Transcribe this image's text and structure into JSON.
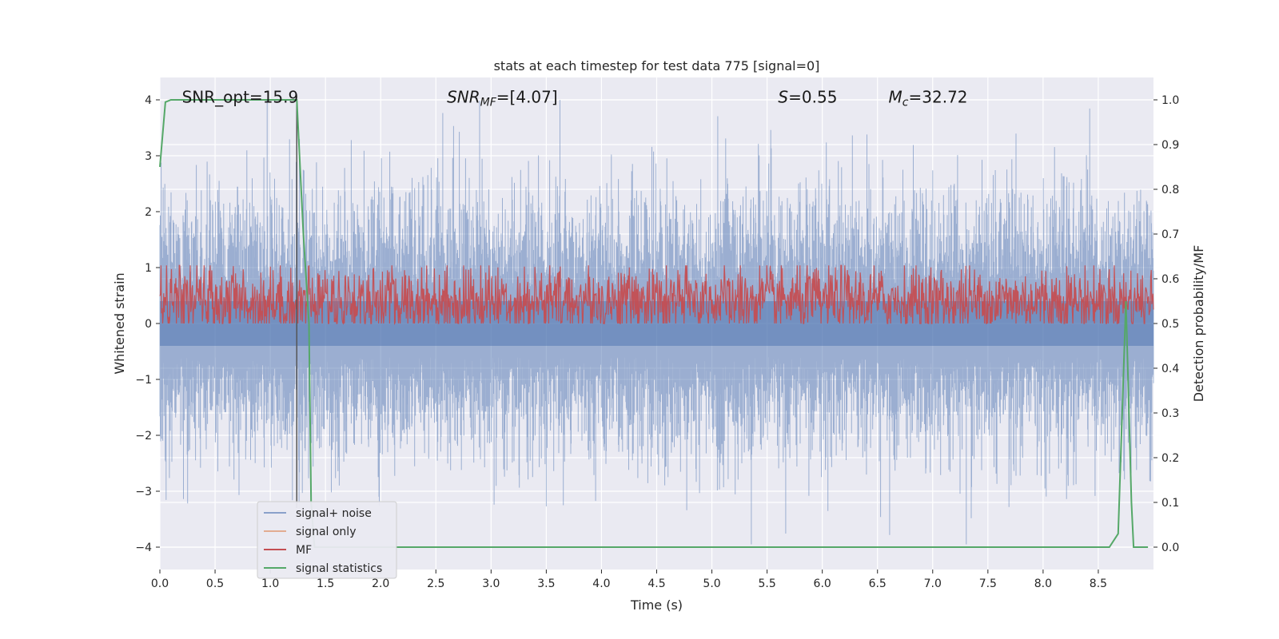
{
  "chart_data": {
    "type": "line",
    "title": "stats at each timestep for test data 775 [signal=0]",
    "xlabel": "Time (s)",
    "ylabel": "Whitened strain",
    "y2label": "Detection probability/MF",
    "xlim": [
      0,
      9.0
    ],
    "ylim": [
      -4.4,
      4.4
    ],
    "y2lim": [
      -0.05,
      1.05
    ],
    "grid": true,
    "legend_position": "lower-left",
    "x_ticks": [
      "0.0",
      "0.5",
      "1.0",
      "1.5",
      "2.0",
      "2.5",
      "3.0",
      "3.5",
      "4.0",
      "4.5",
      "5.0",
      "5.5",
      "6.0",
      "6.5",
      "7.0",
      "7.5",
      "8.0",
      "8.5"
    ],
    "x_tick_values": [
      0,
      0.5,
      1,
      1.5,
      2,
      2.5,
      3,
      3.5,
      4,
      4.5,
      5,
      5.5,
      6,
      6.5,
      7,
      7.5,
      8,
      8.5
    ],
    "y_ticks": [
      "−4",
      "−3",
      "−2",
      "−1",
      "0",
      "1",
      "2",
      "3",
      "4"
    ],
    "y_tick_values": [
      -4,
      -3,
      -2,
      -1,
      0,
      1,
      2,
      3,
      4
    ],
    "y2_ticks": [
      "0.0",
      "0.1",
      "0.2",
      "0.3",
      "0.4",
      "0.5",
      "0.6",
      "0.7",
      "0.8",
      "0.9",
      "1.0"
    ],
    "y2_tick_values": [
      0,
      0.1,
      0.2,
      0.3,
      0.4,
      0.5,
      0.6,
      0.7,
      0.8,
      0.9,
      1.0
    ],
    "annotations": [
      {
        "text": "SNR_opt=15.9",
        "x": 0.2,
        "y": 4.05
      },
      {
        "text": "SNR_MF=[4.07]",
        "x": 2.6,
        "y": 4.05
      },
      {
        "text": "S=0.55",
        "x": 5.6,
        "y": 4.05
      },
      {
        "text": "M_c=32.72",
        "x": 6.6,
        "y": 4.05
      }
    ],
    "marker_line_x": 1.24,
    "series": [
      {
        "name": "signal+ noise",
        "color": "#4c72b0",
        "axis": "left",
        "noise_amplitude": 1.0,
        "x_range": [
          0,
          9.0
        ],
        "note_values": "whitened strain noise, roughly within -3.5 to 4"
      },
      {
        "name": "signal only",
        "color": "#dd8452",
        "axis": "left",
        "x": [],
        "y": []
      },
      {
        "name": "MF",
        "color": "#c44e52",
        "axis": "right",
        "x_range": [
          0,
          9.0
        ],
        "center": 0.55,
        "spread": 0.04
      },
      {
        "name": "signal statistics",
        "color": "#55a868",
        "axis": "right",
        "x": [
          0.0,
          0.05,
          0.1,
          0.2,
          1.24,
          1.3,
          1.35,
          1.37,
          1.4,
          2.0,
          8.6,
          8.68,
          8.75,
          8.8,
          8.82,
          8.95
        ],
        "y": [
          0.85,
          0.995,
          1.0,
          1.0,
          1.0,
          0.7,
          0.5,
          0.1,
          0.0,
          0.0,
          0.0,
          0.03,
          0.55,
          0.1,
          0.0,
          0.0
        ]
      }
    ],
    "legend": [
      {
        "label": "signal+ noise",
        "color": "#4c72b0"
      },
      {
        "label": "signal only",
        "color": "#dd8452"
      },
      {
        "label": "MF",
        "color": "#c44e52"
      },
      {
        "label": "signal statistics",
        "color": "#55a868"
      }
    ]
  }
}
